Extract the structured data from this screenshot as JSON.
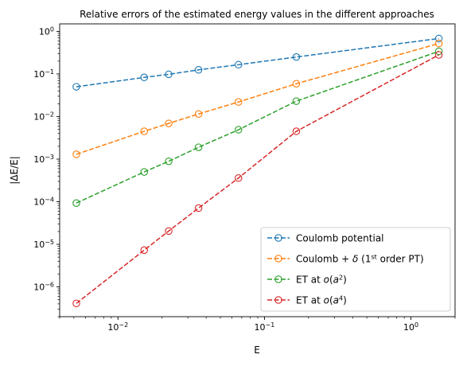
{
  "chart_data": {
    "type": "line",
    "title": "Relative errors of the estimated energy values in the different approaches",
    "xlabel": "E",
    "ylabel": "|ΔE/E|",
    "xscale": "log",
    "yscale": "log",
    "xlim": [
      0.004,
      2.0
    ],
    "ylim": [
      2e-07,
      1.5
    ],
    "grid": false,
    "legend_position": "lower right",
    "x_ticks": [
      {
        "value": 0.01,
        "base": "10",
        "exp": "−2"
      },
      {
        "value": 0.1,
        "base": "10",
        "exp": "−1"
      },
      {
        "value": 1,
        "base": "10",
        "exp": "0"
      }
    ],
    "y_ticks": [
      {
        "value": 1e-06,
        "base": "10",
        "exp": "−6"
      },
      {
        "value": 1e-05,
        "base": "10",
        "exp": "−5"
      },
      {
        "value": 0.0001,
        "base": "10",
        "exp": "−4"
      },
      {
        "value": 0.001,
        "base": "10",
        "exp": "−3"
      },
      {
        "value": 0.01,
        "base": "10",
        "exp": "−2"
      },
      {
        "value": 0.1,
        "base": "10",
        "exp": "−1"
      },
      {
        "value": 1,
        "base": "10",
        "exp": "0"
      }
    ],
    "x": [
      0.0052,
      0.0151,
      0.0222,
      0.0355,
      0.0665,
      0.165,
      1.55
    ],
    "series": [
      {
        "name_parts": [
          [
            "Coulomb potential",
            ""
          ]
        ],
        "color": "#1f77b4",
        "values": [
          0.05,
          0.083,
          0.098,
          0.125,
          0.165,
          0.25,
          0.68
        ]
      },
      {
        "name_parts": [
          [
            "Coulomb + ",
            ""
          ],
          [
            "δ",
            "i"
          ],
          [
            " (1",
            ""
          ],
          [
            "st",
            "sup"
          ],
          [
            " order PT)",
            ""
          ]
        ],
        "color": "#ff7f0e",
        "values": [
          0.0013,
          0.0045,
          0.0069,
          0.0115,
          0.022,
          0.059,
          0.52
        ]
      },
      {
        "name_parts": [
          [
            "ET at ",
            ""
          ],
          [
            "o",
            "i"
          ],
          [
            "(",
            ""
          ],
          [
            "a",
            "i"
          ],
          [
            "2",
            "sup"
          ],
          [
            ")",
            ""
          ]
        ],
        "color": "#2ca02c",
        "values": [
          9.3e-05,
          0.0005,
          0.00089,
          0.0019,
          0.0049,
          0.023,
          0.34
        ]
      },
      {
        "name_parts": [
          [
            "ET at ",
            ""
          ],
          [
            "o",
            "i"
          ],
          [
            "(",
            ""
          ],
          [
            "a",
            "i"
          ],
          [
            "4",
            "sup"
          ],
          [
            ")",
            ""
          ]
        ],
        "color": "#d62728",
        "values": [
          4.1e-07,
          7.3e-06,
          2.05e-05,
          7.1e-05,
          0.00036,
          0.0045,
          0.28
        ]
      }
    ]
  }
}
